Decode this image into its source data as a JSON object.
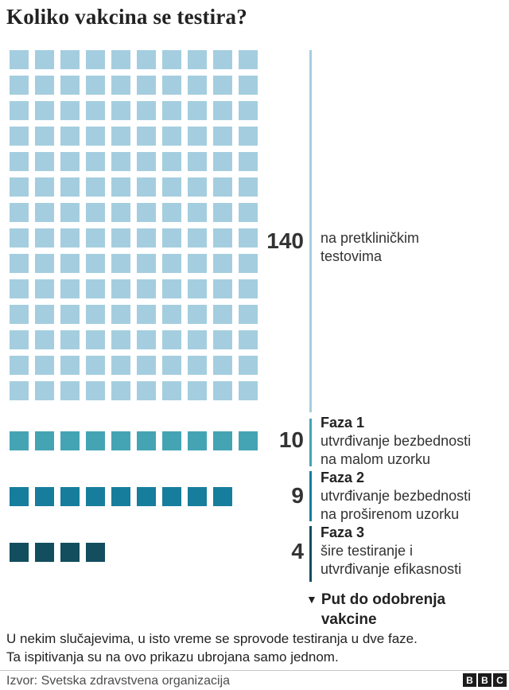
{
  "title": "Koliko vakcina se testira?",
  "chart_data": {
    "type": "bar",
    "variant": "waffle-pictogram",
    "title": "Koliko vakcina se testira?",
    "categories": [
      "na pretkliničkim testovima",
      "Faza 1",
      "Faza 2",
      "Faza 3"
    ],
    "values": [
      140,
      10,
      9,
      4
    ],
    "grid_columns": 10,
    "legend_position": "right-of-bars",
    "groups": [
      {
        "name": "",
        "count": 140,
        "color": "#a4cedf",
        "label_lines": [
          "na pretkliničkim",
          "testovima"
        ]
      },
      {
        "name": "Faza 1",
        "count": 10,
        "color": "#45a4b4",
        "label_lines": [
          "utvrđivanje bezbednosti",
          "na malom uzorku"
        ]
      },
      {
        "name": "Faza 2",
        "count": 9,
        "color": "#177d9c",
        "label_lines": [
          "utvrđivanje bezbednosti",
          "na proširenom uzorku"
        ]
      },
      {
        "name": "Faza 3",
        "count": 4,
        "color": "#134e5e",
        "label_lines": [
          "šire testiranje i",
          "utvrđivanje efikasnosti"
        ]
      }
    ]
  },
  "approval_path": {
    "marker": "▼",
    "lines": [
      "Put do odobrenja",
      "vakcine"
    ]
  },
  "footnote_lines": [
    "U nekim slučajevima, u isto vreme se sprovode testiranja u dve faze.",
    "Ta ispitivanja su na ovo prikazu ubrojana samo jednom."
  ],
  "source": "Izvor: Svetska zdravstvena organizacija",
  "logo": {
    "letters": [
      "B",
      "B",
      "C"
    ]
  },
  "colors": {
    "preclinical": "#a4cedf",
    "phase1": "#45a4b4",
    "phase2": "#177d9c",
    "phase3": "#134e5e",
    "text_dark": "#222222",
    "text_number": "#333333",
    "source_text": "#4d4d4d",
    "divider": "#c8c8c8"
  }
}
